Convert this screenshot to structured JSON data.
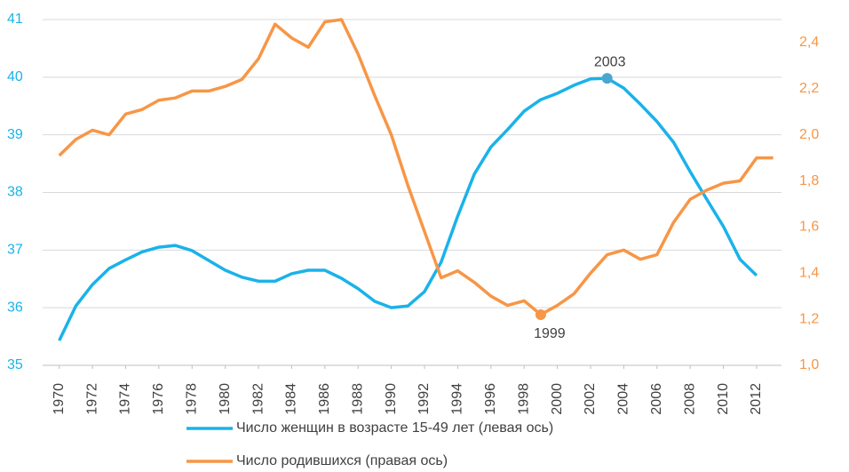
{
  "chart_data": {
    "type": "line",
    "x": [
      1970,
      1971,
      1972,
      1973,
      1974,
      1975,
      1976,
      1977,
      1978,
      1979,
      1980,
      1981,
      1982,
      1983,
      1984,
      1985,
      1986,
      1987,
      1988,
      1989,
      1990,
      1991,
      1992,
      1993,
      1994,
      1995,
      1996,
      1997,
      1998,
      1999,
      2000,
      2001,
      2002,
      2003,
      2004,
      2005,
      2006,
      2007,
      2008,
      2009,
      2010,
      2011,
      2012,
      2013
    ],
    "xlim": [
      1969,
      2013.5
    ],
    "xticks": [
      1970,
      1972,
      1974,
      1976,
      1978,
      1980,
      1982,
      1984,
      1986,
      1988,
      1990,
      1992,
      1994,
      1996,
      1998,
      2000,
      2002,
      2004,
      2006,
      2008,
      2010,
      2012
    ],
    "ylim": [
      35,
      41
    ],
    "yticks": [
      35,
      36,
      37,
      38,
      39,
      40,
      41
    ],
    "y2lim": [
      1.0,
      2.5
    ],
    "y2ticks": [
      {
        "value": 1.0,
        "label": "1,0"
      },
      {
        "value": 1.2,
        "label": "1,2"
      },
      {
        "value": 1.4,
        "label": "1,4"
      },
      {
        "value": 1.6,
        "label": "1,6"
      },
      {
        "value": 1.8,
        "label": "1,8"
      },
      {
        "value": 2.0,
        "label": "2,0"
      },
      {
        "value": 2.2,
        "label": "2,2"
      },
      {
        "value": 2.4,
        "label": "2,4"
      }
    ],
    "grid": true,
    "legend": "bottom",
    "series": [
      {
        "name": "Число женщин в возрасте 15-49 лет (левая ось)",
        "color": "#1ab2ea",
        "axis": "y",
        "values": [
          35.43,
          36.03,
          36.4,
          36.68,
          36.83,
          36.97,
          37.05,
          37.08,
          36.99,
          36.82,
          36.65,
          36.53,
          36.46,
          36.46,
          36.59,
          36.65,
          36.65,
          36.51,
          36.33,
          36.11,
          36.0,
          36.03,
          36.28,
          36.79,
          37.59,
          38.32,
          38.79,
          39.09,
          39.41,
          39.61,
          39.72,
          39.86,
          39.97,
          39.98,
          39.81,
          39.53,
          39.23,
          38.87,
          38.36,
          37.88,
          37.41,
          36.84,
          36.56,
          null
        ]
      },
      {
        "name": "Число родившихся (правая ось)",
        "color": "#f79646",
        "axis": "y2",
        "values": [
          1.91,
          1.98,
          2.02,
          2.0,
          2.09,
          2.11,
          2.15,
          2.16,
          2.19,
          2.19,
          2.21,
          2.24,
          2.33,
          2.48,
          2.42,
          2.38,
          2.49,
          2.5,
          2.35,
          2.17,
          2.0,
          1.78,
          1.58,
          1.38,
          1.41,
          1.36,
          1.3,
          1.26,
          1.28,
          1.22,
          1.26,
          1.31,
          1.4,
          1.48,
          1.5,
          1.46,
          1.48,
          1.62,
          1.72,
          1.76,
          1.79,
          1.8,
          1.9,
          1.9
        ]
      }
    ],
    "annotations": [
      {
        "text": "2003",
        "series": 0,
        "x": 2003
      },
      {
        "text": "1999",
        "series": 1,
        "x": 1999
      }
    ]
  }
}
